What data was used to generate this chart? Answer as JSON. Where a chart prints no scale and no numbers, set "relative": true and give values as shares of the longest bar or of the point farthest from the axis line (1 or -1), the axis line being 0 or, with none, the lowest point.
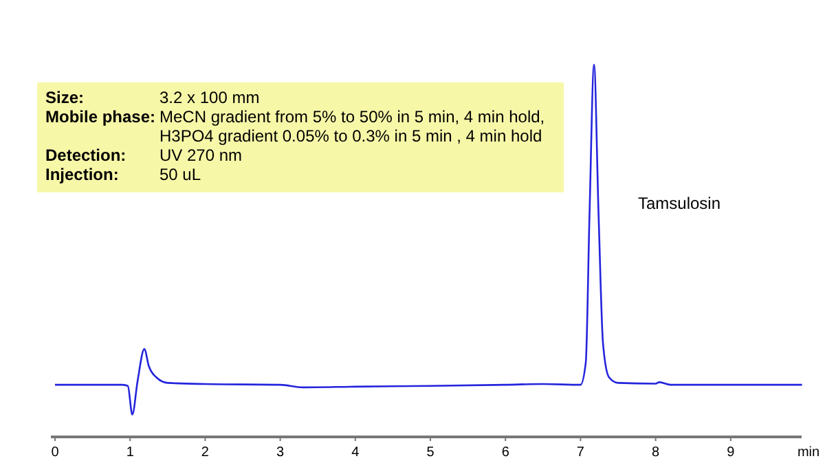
{
  "chart_data": {
    "type": "line",
    "relative": true,
    "xlabel": "min",
    "xlim": [
      0,
      10
    ],
    "xticks": [
      0,
      1,
      2,
      3,
      4,
      5,
      6,
      7,
      8,
      9
    ],
    "grid": false,
    "line_style": "solid",
    "annotations": [
      "Tamsulosin",
      "Size: 3.2 x 100 mm",
      "Mobile phase: MeCN gradient from 5% to 50% in 5 min, 4 min hold,",
      "H3PO4 gradient 0.05% to 0.3% in 5 min , 4 min hold",
      "Detection: UV 270 nm",
      "Injection: 50 uL"
    ],
    "series": [
      {
        "color": "#2424dd",
        "x": [
          0,
          0.9,
          0.97,
          1.03,
          1.1,
          1.19,
          1.25,
          1.35,
          1.5,
          2,
          3,
          3.3,
          4,
          5,
          6,
          6.5,
          7,
          7.07,
          7.12,
          7.18,
          7.24,
          7.3,
          7.38,
          7.5,
          8,
          8.05,
          8.2,
          9,
          9.95
        ],
        "values": [
          0.14,
          0.14,
          0.137,
          0.06,
          0.15,
          0.236,
          0.19,
          0.16,
          0.145,
          0.142,
          0.14,
          0.133,
          0.135,
          0.137,
          0.14,
          0.142,
          0.14,
          0.2,
          0.6,
          1,
          0.6,
          0.25,
          0.16,
          0.145,
          0.143,
          0.147,
          0.14,
          0.14,
          0.14
        ]
      }
    ]
  }
}
